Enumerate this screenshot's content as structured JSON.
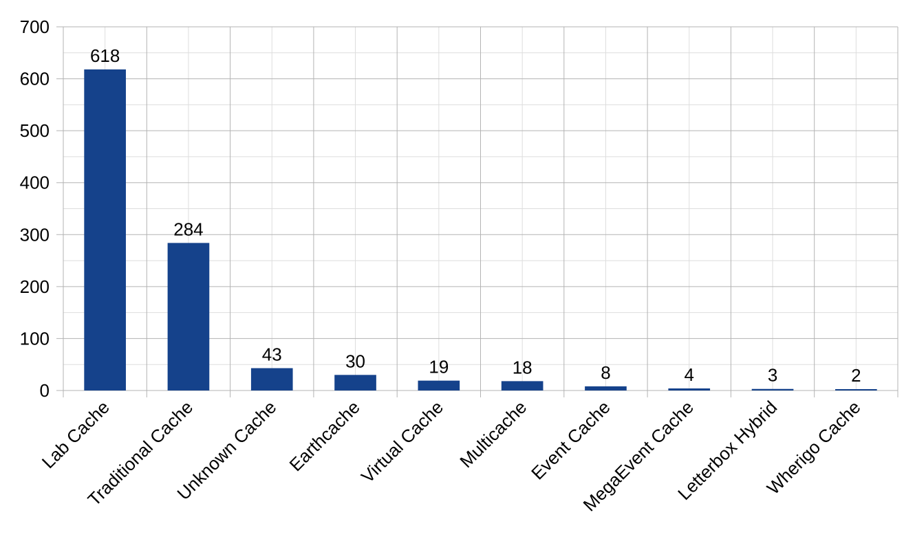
{
  "chart_data": {
    "type": "bar",
    "title": "",
    "xlabel": "",
    "ylabel": "",
    "categories": [
      "Lab Cache",
      "Traditional Cache",
      "Unknown Cache",
      "Earthcache",
      "Virtual Cache",
      "Multicache",
      "Event Cache",
      "MegaEvent Cache",
      "Letterbox Hybrid",
      "Wherigo Cache"
    ],
    "values": [
      618,
      284,
      43,
      30,
      19,
      18,
      8,
      4,
      3,
      2
    ],
    "ylim": [
      0,
      700
    ],
    "yticks": [
      0,
      100,
      200,
      300,
      400,
      500,
      600,
      700
    ],
    "grid": true,
    "minor_grid": true,
    "data_labels": true,
    "legend": "none",
    "colors": {
      "bar": "#15428b",
      "grid_major": "#b3b3b3",
      "grid_minor": "#dddddd"
    }
  }
}
